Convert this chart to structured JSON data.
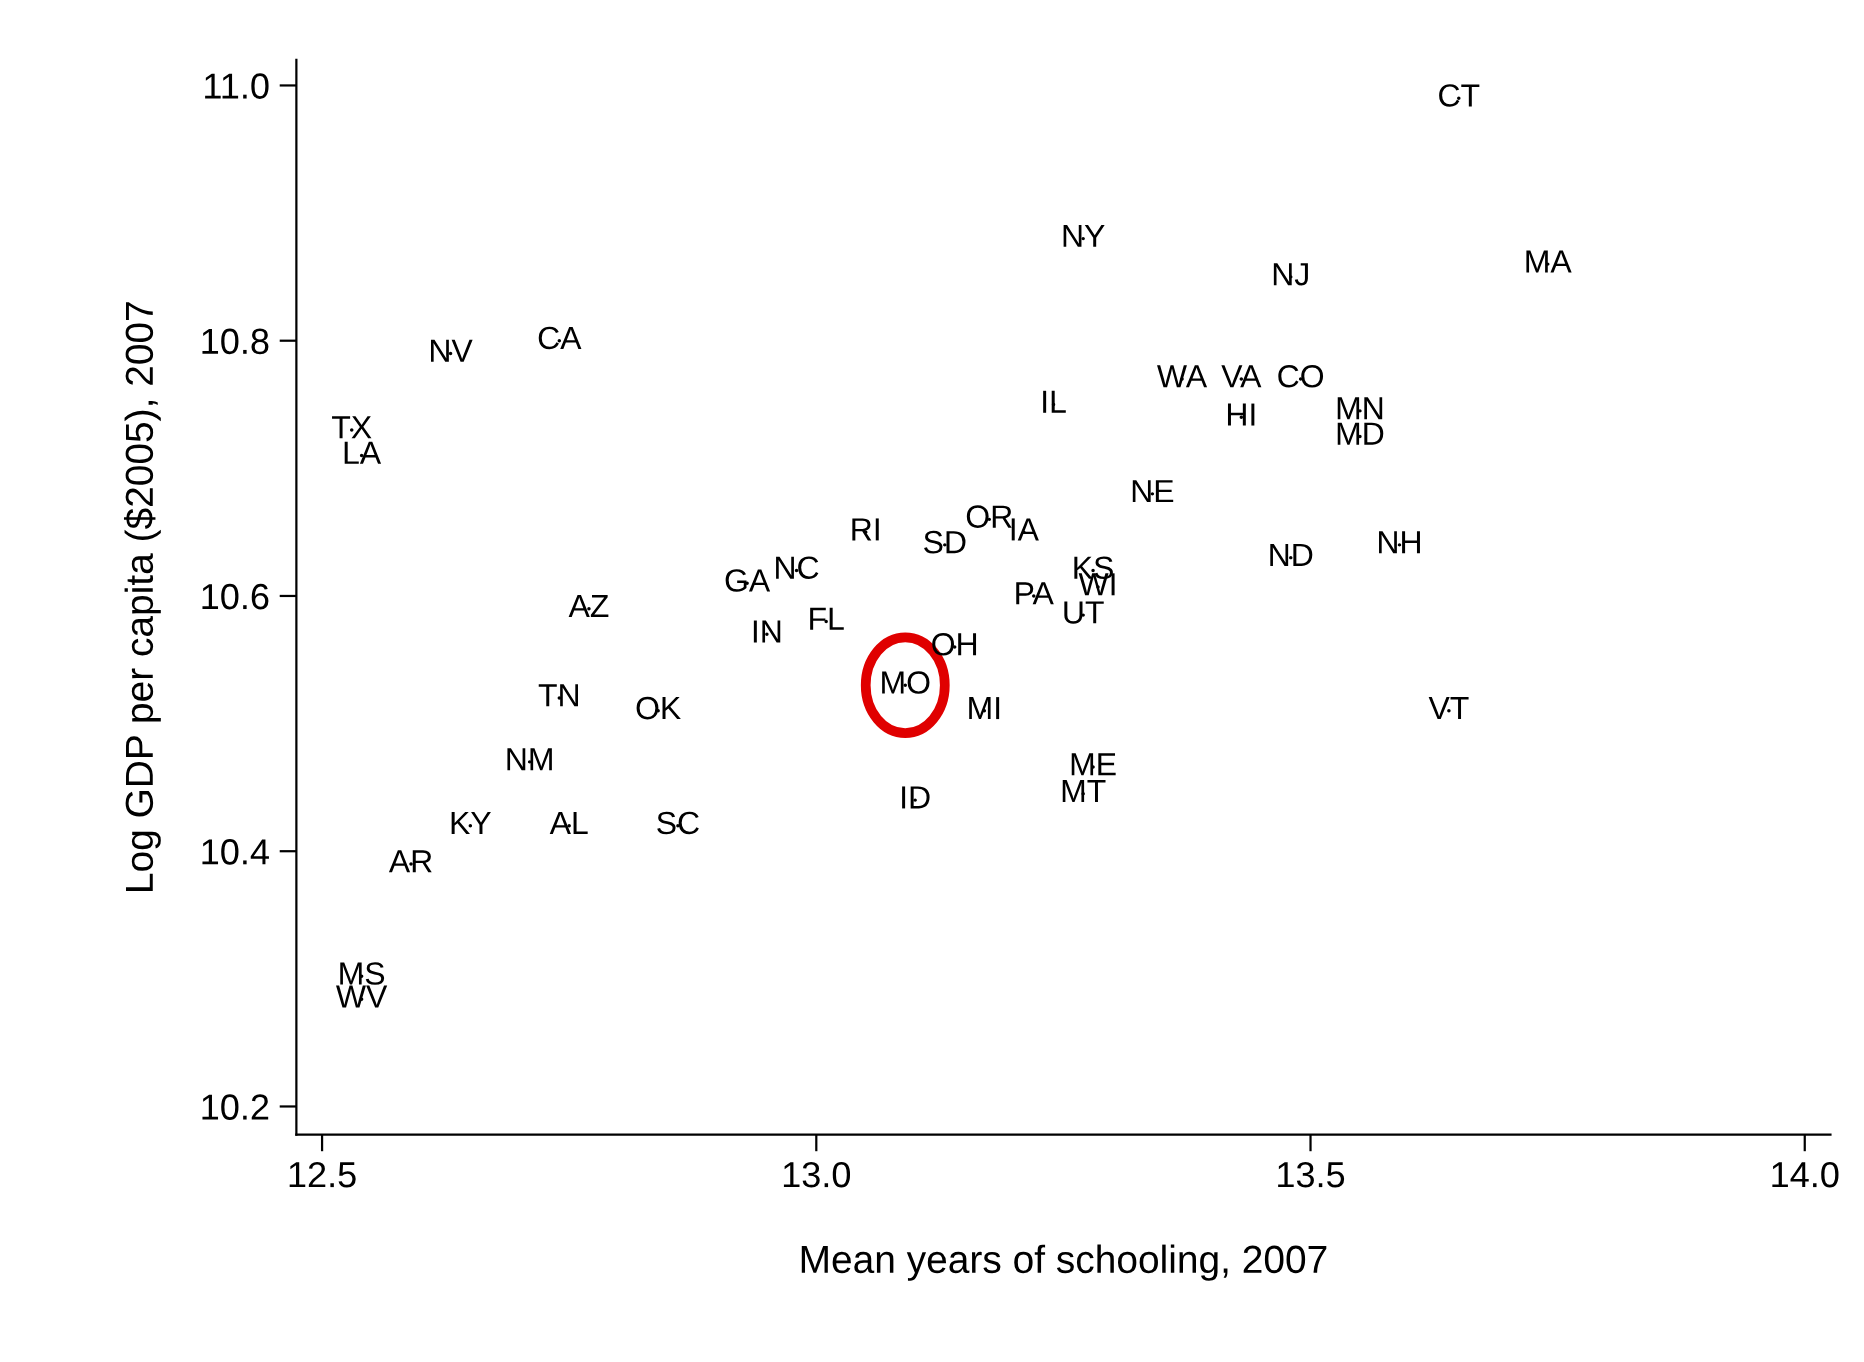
{
  "chart_data": {
    "type": "scatter",
    "xlabel": "Mean years of schooling, 2007",
    "ylabel": "Log GDP per capita ($2005), 2007",
    "marker": "none",
    "grid": false,
    "xlim": [
      12.474,
      14.026
    ],
    "xticks": [
      {
        "value": 12.5,
        "label": "12.5"
      },
      {
        "value": 13.0,
        "label": "13.0"
      },
      {
        "value": 13.5,
        "label": "13.5"
      },
      {
        "value": 14.0,
        "label": "14.0"
      }
    ],
    "ylim": [
      10.178,
      11.02
    ],
    "yticks": [
      {
        "value": 10.2,
        "label": "10.2"
      },
      {
        "value": 10.4,
        "label": "10.4"
      },
      {
        "value": 10.6,
        "label": "10.6"
      },
      {
        "value": 10.8,
        "label": "10.8"
      },
      {
        "value": 11.0,
        "label": "11.0"
      }
    ],
    "series": [
      {
        "color": "#000000",
        "x": [
          13.65,
          13.27,
          13.48,
          13.74,
          12.63,
          12.74,
          12.53,
          12.54,
          13.24,
          13.37,
          13.43,
          13.49,
          13.43,
          13.55,
          13.55,
          13.34,
          13.05,
          13.13,
          13.175,
          13.21,
          13.28,
          13.48,
          13.59,
          12.98,
          12.93,
          12.77,
          13.22,
          13.285,
          13.27,
          13.01,
          12.95,
          13.14,
          13.09,
          13.17,
          12.74,
          12.84,
          13.64,
          12.71,
          13.28,
          13.27,
          13.1,
          12.65,
          12.75,
          12.86,
          12.59,
          12.54,
          12.54
        ],
        "values": [
          10.99,
          10.88,
          10.85,
          10.86,
          10.79,
          10.8,
          10.73,
          10.71,
          10.75,
          10.77,
          10.77,
          10.77,
          10.74,
          10.745,
          10.725,
          10.68,
          10.65,
          10.64,
          10.66,
          10.65,
          10.62,
          10.63,
          10.64,
          10.62,
          10.61,
          10.59,
          10.6,
          10.607,
          10.585,
          10.58,
          10.57,
          10.56,
          10.53,
          10.51,
          10.52,
          10.51,
          10.51,
          10.47,
          10.466,
          10.445,
          10.44,
          10.42,
          10.42,
          10.42,
          10.39,
          10.302,
          10.284
        ],
        "value_labels": [
          "CT",
          "NY",
          "NJ",
          "MA",
          "NV",
          "CA",
          "TX",
          "LA",
          "IL",
          "WA",
          "VA",
          "CO",
          "HI",
          "MN",
          "MD",
          "NE",
          "RI",
          "SD",
          "OR",
          "IA",
          "KS",
          "ND",
          "NH",
          "NC",
          "GA",
          "AZ",
          "PA",
          "WI",
          "UT",
          "FL",
          "IN",
          "OH",
          "MO",
          "MI",
          "TN",
          "OK",
          "VT",
          "NM",
          "ME",
          "MT",
          "ID",
          "KY",
          "AL",
          "SC",
          "AR",
          "MS",
          "WV"
        ]
      }
    ]
  }
}
